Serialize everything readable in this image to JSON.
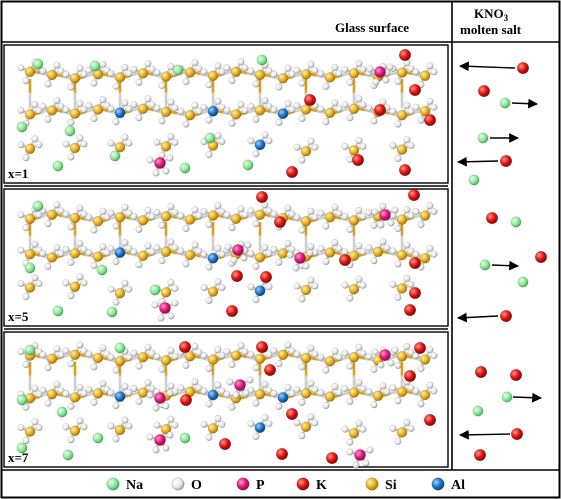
{
  "header": {
    "glass_title": "Glass surface",
    "salt_line1_main": "KNO",
    "salt_line1_sub": "3",
    "salt_line2": "molten salt"
  },
  "panels": [
    {
      "label": "x=1"
    },
    {
      "label": "x=5"
    },
    {
      "label": "x=7"
    }
  ],
  "legend": [
    {
      "symbol": "Na",
      "color": "#8fe89a"
    },
    {
      "symbol": "O",
      "color": "#eeeeee"
    },
    {
      "symbol": "P",
      "color": "#e0157a"
    },
    {
      "symbol": "K",
      "color": "#e01010"
    },
    {
      "symbol": "Si",
      "color": "#e8b020"
    },
    {
      "symbol": "Al",
      "color": "#1c72c8"
    }
  ]
}
